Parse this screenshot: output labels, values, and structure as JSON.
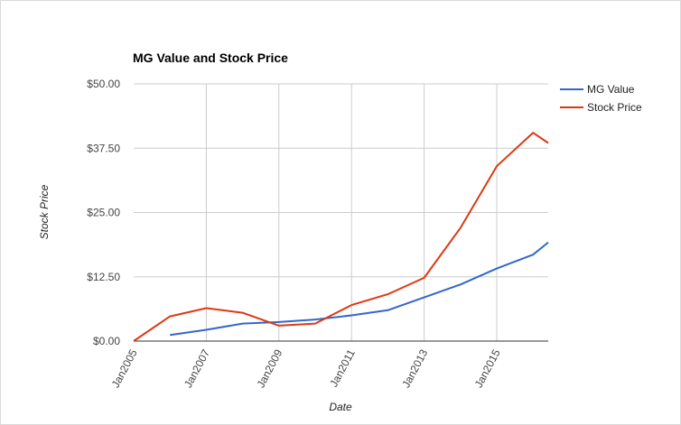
{
  "chart_data": {
    "type": "line",
    "title": "MG Value and Stock Price",
    "xlabel": "Date",
    "ylabel": "Stock Price",
    "x_ticks": [
      "Jan2005",
      "Jan2007",
      "Jan2009",
      "Jan2011",
      "Jan2013",
      "Jan2015"
    ],
    "y_ticks": [
      "$0.00",
      "$12.50",
      "$25.00",
      "$37.50",
      "$50.00"
    ],
    "y_tick_values": [
      0,
      12.5,
      25,
      37.5,
      50
    ],
    "ylim": [
      0,
      50
    ],
    "xlim": [
      "2005-01",
      "2016-06"
    ],
    "legend": "right",
    "grid": true,
    "series": [
      {
        "name": "MG Value",
        "color": "#3366cc",
        "points": [
          {
            "date": "2006-01",
            "value": 1.2
          },
          {
            "date": "2007-01",
            "value": 2.2
          },
          {
            "date": "2008-01",
            "value": 3.4
          },
          {
            "date": "2009-01",
            "value": 3.7
          },
          {
            "date": "2010-01",
            "value": 4.2
          },
          {
            "date": "2011-01",
            "value": 5.0
          },
          {
            "date": "2012-01",
            "value": 6.0
          },
          {
            "date": "2013-01",
            "value": 8.5
          },
          {
            "date": "2014-01",
            "value": 11.0
          },
          {
            "date": "2015-01",
            "value": 14.1
          },
          {
            "date": "2016-01",
            "value": 16.8
          },
          {
            "date": "2016-06",
            "value": 19.2
          }
        ]
      },
      {
        "name": "Stock Price",
        "color": "#dc3912",
        "points": [
          {
            "date": "2005-01",
            "value": 0.0
          },
          {
            "date": "2006-01",
            "value": 4.8
          },
          {
            "date": "2007-01",
            "value": 6.4
          },
          {
            "date": "2008-01",
            "value": 5.5
          },
          {
            "date": "2009-01",
            "value": 3.0
          },
          {
            "date": "2010-01",
            "value": 3.4
          },
          {
            "date": "2011-01",
            "value": 7.0
          },
          {
            "date": "2012-01",
            "value": 9.1
          },
          {
            "date": "2013-01",
            "value": 12.3
          },
          {
            "date": "2014-01",
            "value": 22.0
          },
          {
            "date": "2015-01",
            "value": 34.0
          },
          {
            "date": "2016-01",
            "value": 40.5
          },
          {
            "date": "2016-06",
            "value": 38.5
          }
        ]
      }
    ]
  }
}
